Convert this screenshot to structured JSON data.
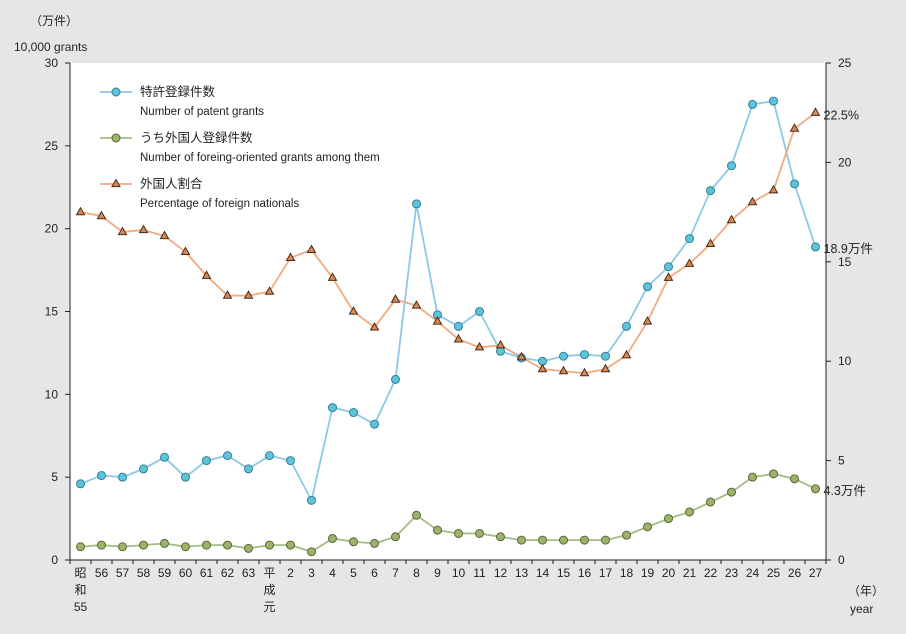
{
  "chart_data": {
    "type": "line",
    "unit_left_ja": "（万件）",
    "unit_left_en": "10,000 grants",
    "x_unit_ja": "（年）",
    "x_unit_en": "year",
    "categories": [
      [
        "昭",
        "和",
        "55"
      ],
      [
        "56"
      ],
      [
        "57"
      ],
      [
        "58"
      ],
      [
        "59"
      ],
      [
        "60"
      ],
      [
        "61"
      ],
      [
        "62"
      ],
      [
        "63"
      ],
      [
        "平",
        "成",
        "元"
      ],
      [
        "2"
      ],
      [
        "3"
      ],
      [
        "4"
      ],
      [
        "5"
      ],
      [
        "6"
      ],
      [
        "7"
      ],
      [
        "8"
      ],
      [
        "9"
      ],
      [
        "10"
      ],
      [
        "11"
      ],
      [
        "12"
      ],
      [
        "13"
      ],
      [
        "14"
      ],
      [
        "15"
      ],
      [
        "16"
      ],
      [
        "17"
      ],
      [
        "18"
      ],
      [
        "19"
      ],
      [
        "20"
      ],
      [
        "21"
      ],
      [
        "22"
      ],
      [
        "23"
      ],
      [
        "24"
      ],
      [
        "25"
      ],
      [
        "26"
      ],
      [
        "27"
      ]
    ],
    "y_left": {
      "min": 0,
      "max": 30,
      "ticks": [
        "0",
        "5",
        "10",
        "15",
        "20",
        "25",
        "30"
      ]
    },
    "y_right": {
      "min": 0,
      "max": 25,
      "ticks": [
        "0",
        "5",
        "10",
        "15",
        "20",
        "25"
      ]
    },
    "series": [
      {
        "name": "特許登録件数",
        "name_en": "Number of patent grants",
        "axis": "left",
        "marker": "circle",
        "line_color": "#8cc8e8",
        "marker_fill": "#5ec4dc",
        "marker_stroke": "#2f7f96",
        "values": [
          4.6,
          5.1,
          5.0,
          5.5,
          6.2,
          5.0,
          6.0,
          6.3,
          5.5,
          6.3,
          6.0,
          3.6,
          9.2,
          8.9,
          8.2,
          10.9,
          21.5,
          14.8,
          14.1,
          15.0,
          12.6,
          12.2,
          12.0,
          12.3,
          12.4,
          12.3,
          14.1,
          16.5,
          17.7,
          19.4,
          22.3,
          23.8,
          27.5,
          27.7,
          22.7,
          18.9
        ]
      },
      {
        "name": "うち外国人登録件数",
        "name_en": "Number of foreing-oriented grants among them",
        "axis": "left",
        "marker": "circle",
        "line_color": "#a7b985",
        "marker_fill": "#9db36d",
        "marker_stroke": "#55682f",
        "values": [
          0.8,
          0.9,
          0.8,
          0.9,
          1.0,
          0.8,
          0.9,
          0.9,
          0.7,
          0.9,
          0.9,
          0.5,
          1.3,
          1.1,
          1.0,
          1.4,
          2.7,
          1.8,
          1.6,
          1.6,
          1.4,
          1.2,
          1.2,
          1.2,
          1.2,
          1.2,
          1.5,
          2.0,
          2.5,
          2.9,
          3.5,
          4.1,
          5.0,
          5.2,
          4.9,
          4.3
        ]
      },
      {
        "name": "外国人割合",
        "name_en": "Percentage of foreign nationals",
        "axis": "right",
        "marker": "triangle",
        "line_color": "#f0aa80",
        "marker_fill": "#d68a5a",
        "marker_stroke": "#4a2a12",
        "values": [
          17.5,
          17.3,
          16.5,
          16.6,
          16.3,
          15.5,
          14.3,
          13.3,
          13.3,
          13.5,
          15.2,
          15.6,
          14.2,
          12.5,
          11.7,
          13.1,
          12.8,
          12.0,
          11.1,
          10.7,
          10.8,
          10.2,
          9.6,
          9.5,
          9.4,
          9.6,
          10.3,
          12.0,
          14.2,
          14.9,
          15.9,
          17.1,
          18.0,
          18.6,
          21.7,
          22.5
        ]
      }
    ],
    "end_labels": [
      "18.9万件",
      "4.3万件",
      "22.5%"
    ],
    "legend_position": "top-left",
    "grid": false
  }
}
